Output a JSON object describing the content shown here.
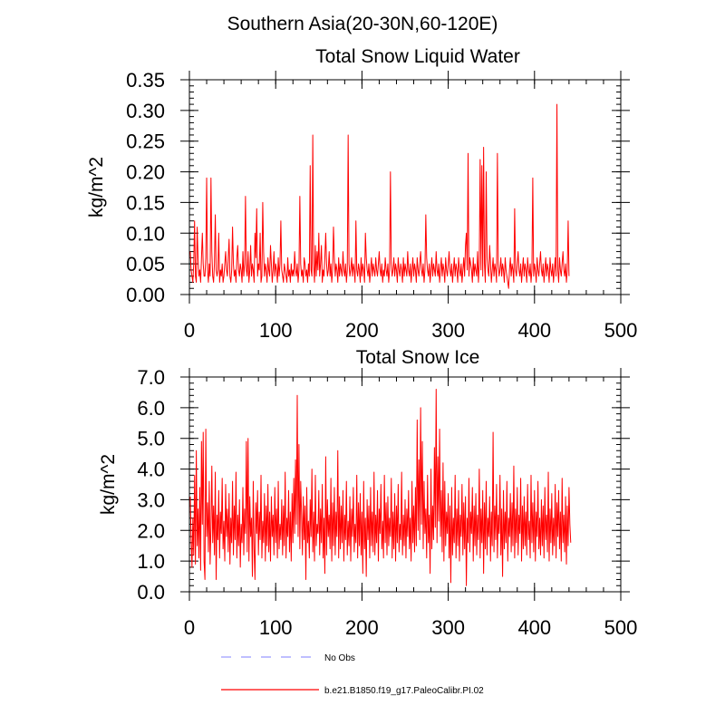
{
  "figure_title": "Southern Asia(20-30N,60-120E)",
  "chart_data": [
    {
      "type": "line",
      "title": "Total Snow Liquid Water",
      "xlabel": "",
      "ylabel": "kg/m^2",
      "xlim": [
        0,
        500
      ],
      "ylim": [
        0,
        0.35
      ],
      "x_ticks": [
        0,
        100,
        200,
        300,
        400,
        500
      ],
      "x_tick_labels": [
        "0",
        "100",
        "200",
        "300",
        "400",
        "500"
      ],
      "y_ticks": [
        0,
        0.05,
        0.1,
        0.15,
        0.2,
        0.25,
        0.3,
        0.35
      ],
      "y_tick_labels": [
        "0.00",
        "0.05",
        "0.10",
        "0.15",
        "0.20",
        "0.25",
        "0.30",
        "0.35"
      ],
      "grid": false,
      "series": [
        {
          "name": "b.e21.B1850.f19_g17.PaleoCalibr.PI.02",
          "color": "#ff0000",
          "x_start": 1,
          "x_step": 1,
          "values": [
            0.07,
            0.04,
            0.03,
            0.02,
            0.05,
            0.12,
            0.03,
            0.02,
            0.11,
            0.06,
            0.03,
            0.04,
            0.02,
            0.06,
            0.1,
            0.05,
            0.03,
            0.03,
            0.06,
            0.19,
            0.04,
            0.02,
            0.05,
            0.03,
            0.19,
            0.07,
            0.03,
            0.02,
            0.05,
            0.13,
            0.04,
            0.03,
            0.04,
            0.1,
            0.02,
            0.04,
            0.03,
            0.05,
            0.02,
            0.03,
            0.05,
            0.07,
            0.04,
            0.03,
            0.06,
            0.09,
            0.03,
            0.02,
            0.04,
            0.11,
            0.05,
            0.03,
            0.04,
            0.02,
            0.06,
            0.08,
            0.04,
            0.03,
            0.05,
            0.04,
            0.02,
            0.07,
            0.03,
            0.05,
            0.16,
            0.04,
            0.03,
            0.07,
            0.02,
            0.04,
            0.08,
            0.03,
            0.05,
            0.04,
            0.02,
            0.1,
            0.06,
            0.14,
            0.03,
            0.05,
            0.04,
            0.1,
            0.02,
            0.03,
            0.15,
            0.07,
            0.03,
            0.05,
            0.04,
            0.02,
            0.06,
            0.04,
            0.03,
            0.08,
            0.05,
            0.02,
            0.04,
            0.07,
            0.03,
            0.05,
            0.04,
            0.02,
            0.06,
            0.03,
            0.05,
            0.12,
            0.04,
            0.03,
            0.02,
            0.05,
            0.04,
            0.03,
            0.02,
            0.06,
            0.03,
            0.04,
            0.02,
            0.05,
            0.03,
            0.04,
            0.03,
            0.07,
            0.04,
            0.03,
            0.05,
            0.02,
            0.04,
            0.16,
            0.05,
            0.03,
            0.04,
            0.02,
            0.06,
            0.05,
            0.03,
            0.04,
            0.02,
            0.05,
            0.03,
            0.21,
            0.04,
            0.03,
            0.26,
            0.05,
            0.02,
            0.08,
            0.03,
            0.07,
            0.04,
            0.1,
            0.03,
            0.05,
            0.08,
            0.02,
            0.04,
            0.03,
            0.06,
            0.1,
            0.05,
            0.03,
            0.04,
            0.07,
            0.03,
            0.05,
            0.02,
            0.04,
            0.11,
            0.06,
            0.03,
            0.05,
            0.04,
            0.02,
            0.06,
            0.03,
            0.05,
            0.04,
            0.03,
            0.07,
            0.04,
            0.03,
            0.05,
            0.02,
            0.04,
            0.26,
            0.05,
            0.03,
            0.04,
            0.06,
            0.03,
            0.05,
            0.04,
            0.02,
            0.12,
            0.04,
            0.03,
            0.05,
            0.04,
            0.02,
            0.06,
            0.03,
            0.05,
            0.04,
            0.02,
            0.1,
            0.06,
            0.04,
            0.03,
            0.05,
            0.02,
            0.04,
            0.06,
            0.03,
            0.05,
            0.04,
            0.03,
            0.06,
            0.04,
            0.03,
            0.05,
            0.07,
            0.04,
            0.03,
            0.05,
            0.02,
            0.04,
            0.03,
            0.06,
            0.04,
            0.03,
            0.05,
            0.02,
            0.04,
            0.2,
            0.05,
            0.03,
            0.04,
            0.06,
            0.03,
            0.05,
            0.04,
            0.02,
            0.06,
            0.04,
            0.03,
            0.05,
            0.04,
            0.02,
            0.06,
            0.03,
            0.05,
            0.04,
            0.03,
            0.07,
            0.04,
            0.03,
            0.05,
            0.02,
            0.04,
            0.06,
            0.03,
            0.05,
            0.04,
            0.02,
            0.06,
            0.04,
            0.03,
            0.05,
            0.07,
            0.04,
            0.03,
            0.05,
            0.02,
            0.04,
            0.13,
            0.06,
            0.04,
            0.03,
            0.05,
            0.02,
            0.04,
            0.06,
            0.03,
            0.05,
            0.04,
            0.03,
            0.07,
            0.04,
            0.03,
            0.05,
            0.02,
            0.04,
            0.06,
            0.03,
            0.05,
            0.04,
            0.02,
            0.06,
            0.04,
            0.03,
            0.05,
            0.07,
            0.04,
            0.03,
            0.05,
            0.02,
            0.04,
            0.06,
            0.03,
            0.05,
            0.04,
            0.02,
            0.06,
            0.04,
            0.03,
            0.05,
            0.02,
            0.04,
            0.06,
            0.03,
            0.08,
            0.1,
            0.04,
            0.23,
            0.03,
            0.06,
            0.05,
            0.04,
            0.02,
            0.06,
            0.03,
            0.05,
            0.04,
            0.03,
            0.07,
            0.02,
            0.05,
            0.22,
            0.04,
            0.21,
            0.03,
            0.24,
            0.05,
            0.02,
            0.2,
            0.06,
            0.04,
            0.03,
            0.08,
            0.05,
            0.02,
            0.04,
            0.06,
            0.03,
            0.05,
            0.04,
            0.02,
            0.23,
            0.05,
            0.03,
            0.04,
            0.06,
            0.03,
            0.05,
            0.04,
            0.02,
            0.06,
            0.04,
            0.03,
            0.02,
            0.01,
            0.04,
            0.06,
            0.03,
            0.05,
            0.04,
            0.02,
            0.14,
            0.04,
            0.03,
            0.05,
            0.07,
            0.04,
            0.03,
            0.05,
            0.02,
            0.04,
            0.06,
            0.03,
            0.05,
            0.04,
            0.02,
            0.06,
            0.04,
            0.03,
            0.05,
            0.02,
            0.04,
            0.19,
            0.03,
            0.05,
            0.04,
            0.02,
            0.06,
            0.04,
            0.03,
            0.05,
            0.07,
            0.04,
            0.03,
            0.05,
            0.02,
            0.04,
            0.06,
            0.03,
            0.05,
            0.04,
            0.02,
            0.06,
            0.04,
            0.03,
            0.05,
            0.02,
            0.04,
            0.06,
            0.03,
            0.31,
            0.04,
            0.02,
            0.06,
            0.04,
            0.03,
            0.05,
            0.07,
            0.04,
            0.03,
            0.05,
            0.02,
            0.04,
            0.12,
            0.03
          ]
        },
        {
          "name": "No Obs",
          "color": "#9999ff",
          "dash": true,
          "values": []
        }
      ]
    },
    {
      "type": "line",
      "title": "Total Snow Ice",
      "xlabel": "",
      "ylabel": "kg/m^2",
      "xlim": [
        0,
        500
      ],
      "ylim": [
        0,
        7
      ],
      "x_ticks": [
        0,
        100,
        200,
        300,
        400,
        500
      ],
      "x_tick_labels": [
        "0",
        "100",
        "200",
        "300",
        "400",
        "500"
      ],
      "y_ticks": [
        0,
        1,
        2,
        3,
        4,
        5,
        6,
        7
      ],
      "y_tick_labels": [
        "0.0",
        "1.0",
        "2.0",
        "3.0",
        "4.0",
        "5.0",
        "6.0",
        "7.0"
      ],
      "grid": false,
      "series": [
        {
          "name": "b.e21.B1850.f19_g17.PaleoCalibr.PI.02",
          "color": "#ff0000",
          "x_start": 1,
          "x_step": 1,
          "values": [
            3.1,
            1.7,
            0.8,
            2.4,
            1.2,
            3.8,
            0.9,
            4.6,
            1.5,
            2.7,
            1.1,
            3.4,
            0.7,
            4.9,
            2.2,
            5.2,
            1.0,
            0.4,
            5.3,
            1.8,
            2.9,
            1.3,
            3.6,
            0.9,
            2.1,
            4.1,
            1.6,
            2.8,
            1.2,
            3.9,
            0.4,
            2.5,
            1.7,
            3.3,
            1.1,
            2.6,
            1.9,
            3.7,
            1.4,
            2.3,
            1.0,
            3.5,
            1.8,
            2.7,
            1.3,
            3.2,
            0.9,
            2.4,
            1.6,
            3.6,
            1.2,
            2.8,
            1.7,
            3.9,
            1.1,
            2.5,
            1.5,
            3.0,
            0.8,
            2.2,
            1.6,
            3.4,
            1.2,
            2.7,
            1.9,
            4.9,
            1.3,
            5.0,
            1.0,
            3.1,
            1.8,
            2.4,
            0.5,
            3.6,
            1.4,
            0.4,
            2.9,
            1.9,
            3.3,
            1.2,
            2.6,
            1.7,
            3.8,
            1.1,
            2.3,
            1.6,
            3.2,
            1.0,
            2.8,
            1.5,
            3.5,
            1.3,
            2.6,
            1.0,
            3.1,
            1.8,
            2.5,
            1.2,
            3.4,
            1.6,
            2.7,
            1.1,
            3.6,
            1.4,
            2.2,
            1.7,
            3.0,
            1.2,
            2.8,
            1.5,
            3.9,
            1.1,
            2.4,
            1.8,
            3.3,
            1.3,
            2.6,
            1.0,
            3.2,
            1.6,
            3.7,
            1.9,
            4.3,
            2.2,
            6.4,
            1.8,
            4.8,
            1.4,
            3.6,
            2.5,
            1.2,
            3.1,
            1.7,
            2.8,
            0.4,
            3.4,
            1.6,
            2.3,
            1.1,
            3.0,
            1.8,
            4.0,
            1.3,
            2.6,
            1.0,
            3.8,
            1.5,
            2.2,
            1.9,
            3.3,
            1.2,
            2.7,
            1.6,
            3.5,
            1.1,
            2.4,
            0.6,
            4.4,
            1.2,
            3.0,
            1.8,
            2.5,
            1.4,
            3.7,
            1.0,
            2.9,
            1.5,
            3.4,
            1.2,
            2.6,
            1.8,
            4.6,
            1.1,
            3.1,
            1.4,
            2.8,
            1.6,
            3.3,
            1.0,
            2.5,
            1.7,
            3.6,
            1.2,
            2.3,
            1.5,
            3.1,
            1.0,
            2.7,
            1.8,
            3.4,
            1.3,
            2.2,
            1.6,
            3.8,
            1.1,
            2.9,
            1.5,
            3.2,
            1.2,
            2.6,
            0.6,
            3.6,
            1.4,
            2.4,
            0.5,
            3.0,
            1.7,
            2.8,
            1.1,
            3.4,
            1.5,
            2.6,
            1.3,
            3.9,
            1.2,
            2.5,
            1.6,
            3.3,
            1.0,
            2.7,
            1.9,
            3.5,
            1.4,
            2.3,
            1.1,
            3.8,
            1.6,
            2.9,
            1.2,
            3.1,
            1.5,
            2.4,
            1.8,
            3.7,
            1.1,
            2.6,
            1.4,
            3.2,
            1.0,
            2.8,
            1.6,
            3.5,
            1.3,
            2.2,
            1.7,
            3.9,
            1.2,
            2.5,
            1.5,
            3.0,
            1.1,
            2.7,
            1.8,
            3.3,
            1.4,
            2.4,
            1.0,
            3.6,
            1.6,
            2.8,
            1.3,
            3.4,
            1.5,
            5.6,
            2.0,
            4.3,
            1.7,
            6.0,
            2.2,
            4.9,
            1.4,
            3.6,
            1.9,
            2.7,
            1.1,
            3.8,
            1.6,
            2.5,
            0.6,
            4.0,
            1.4,
            2.8,
            1.7,
            4.7,
            2.1,
            6.6,
            1.6,
            4.4,
            2.3,
            5.3,
            1.8,
            3.3,
            1.3,
            4.2,
            1.0,
            3.6,
            1.5,
            2.6,
            1.9,
            3.2,
            1.1,
            2.8,
            0.3,
            3.4,
            1.2,
            2.4,
            1.6,
            3.8,
            1.1,
            2.7,
            1.5,
            3.3,
            1.0,
            2.5,
            1.8,
            3.5,
            1.2,
            2.9,
            1.4,
            3.1,
            0.2,
            2.4,
            1.6,
            3.7,
            1.3,
            2.6,
            1.9,
            3.4,
            1.0,
            2.8,
            1.5,
            3.2,
            1.2,
            2.5,
            1.7,
            4.0,
            1.1,
            2.7,
            1.6,
            3.3,
            0.6,
            2.9,
            1.4,
            3.6,
            1.2,
            2.4,
            1.8,
            3.1,
            1.0,
            2.6,
            1.5,
            5.2,
            1.3,
            2.8,
            1.7,
            3.5,
            1.1,
            2.5,
            1.9,
            3.8,
            1.2,
            2.7,
            0.5,
            3.3,
            1.4,
            2.6,
            1.6,
            3.6,
            1.0,
            2.4,
            1.8,
            3.2,
            1.3,
            2.9,
            1.5,
            4.1,
            1.1,
            2.7,
            1.6,
            3.4,
            1.2,
            2.5,
            1.9,
            3.7,
            1.0,
            2.8,
            1.4,
            3.1,
            1.5,
            2.6,
            1.2,
            3.5,
            1.7,
            2.3,
            1.1,
            3.8,
            1.6,
            2.9,
            1.3,
            3.3,
            1.0,
            2.6,
            1.8,
            3.6,
            1.4,
            2.4,
            1.2,
            3.0,
            1.5,
            2.8,
            1.1,
            3.4,
            1.7,
            2.5,
            1.3,
            3.9,
            1.0,
            2.7,
            1.6,
            3.2,
            1.2,
            2.4,
            1.5,
            3.5,
            1.1,
            2.9,
            1.8,
            3.3,
            1.4,
            2.6,
            1.0,
            3.7,
            1.6,
            2.5,
            1.3,
            3.1,
            0.9,
            2.8,
            1.5,
            3.4,
            2.2,
            1.6
          ]
        },
        {
          "name": "No Obs",
          "color": "#9999ff",
          "dash": true,
          "values": []
        }
      ]
    }
  ],
  "legend": {
    "placement": "bottom",
    "items": [
      {
        "label": "No Obs",
        "color": "#9999ff",
        "style": "dashed"
      },
      {
        "label": "b.e21.B1850.f19_g17.PaleoCalibr.PI.02",
        "color": "#ff0000",
        "style": "solid"
      }
    ]
  }
}
